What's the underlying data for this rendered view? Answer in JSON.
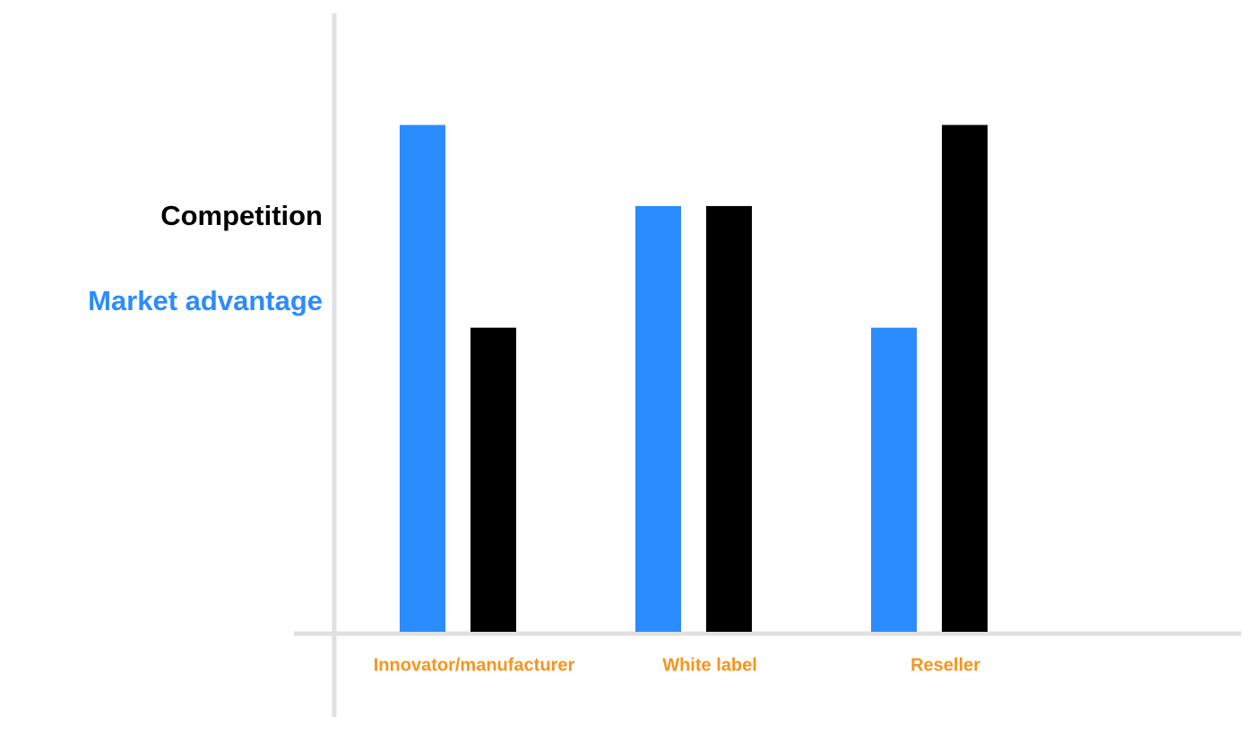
{
  "chart_data": {
    "type": "bar",
    "categories": [
      "Innovator/manufacturer",
      "White label",
      "Reseller"
    ],
    "category_label_color": "#f7941d",
    "series": [
      {
        "name": "Market advantage",
        "color": "#2b8cff",
        "values": [
          100,
          84,
          60
        ]
      },
      {
        "name": "Competition",
        "color": "#000000",
        "values": [
          60,
          84,
          100
        ]
      }
    ],
    "ylim": [
      0,
      122
    ]
  }
}
